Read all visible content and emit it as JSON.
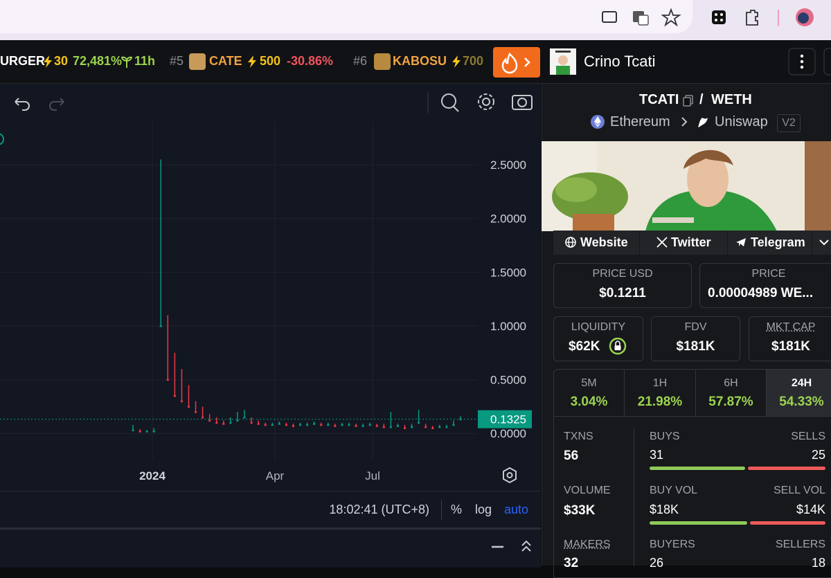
{
  "ticker": [
    {
      "name": "URGER",
      "boost": "30",
      "change": "72,481%",
      "age": "11h"
    },
    {
      "rank": "#5",
      "name": "CATE",
      "boost": "500",
      "change": "-30.86%"
    },
    {
      "rank": "#6",
      "name": "KABOSU",
      "boost": "700"
    }
  ],
  "header": {
    "title": "Crino Tcati"
  },
  "chart": {
    "type": "candlestick",
    "ylim": [
      -0.25,
      2.9
    ],
    "yticks": [
      {
        "value": 0,
        "label": "0.0000"
      },
      {
        "value": 0.5,
        "label": "0.5000"
      },
      {
        "value": 1,
        "label": "1.0000"
      },
      {
        "value": 1.5,
        "label": "1.5000"
      },
      {
        "value": 2,
        "label": "2.0000"
      },
      {
        "value": 2.5,
        "label": "2.5000"
      }
    ],
    "last_price": 0.1325,
    "close": [
      0.03,
      0.02,
      0.02,
      0.02,
      1.0,
      0.5,
      0.35,
      0.3,
      0.25,
      0.2,
      0.15,
      0.12,
      0.1,
      0.09,
      0.1,
      0.12,
      0.15,
      0.1,
      0.09,
      0.08,
      0.08,
      0.09,
      0.08,
      0.07,
      0.08,
      0.08,
      0.09,
      0.08,
      0.08,
      0.07,
      0.08,
      0.08,
      0.07,
      0.07,
      0.08,
      0.07,
      0.06,
      0.06,
      0.07,
      0.05,
      0.06,
      0.1,
      0.06,
      0.05,
      0.06,
      0.06,
      0.08,
      0.1325
    ],
    "high": [
      0.08,
      0.04,
      0.03,
      0.05,
      2.55,
      1.1,
      0.75,
      0.6,
      0.45,
      0.3,
      0.25,
      0.18,
      0.15,
      0.12,
      0.15,
      0.2,
      0.22,
      0.15,
      0.12,
      0.1,
      0.1,
      0.11,
      0.1,
      0.09,
      0.1,
      0.1,
      0.11,
      0.1,
      0.1,
      0.09,
      0.1,
      0.1,
      0.09,
      0.09,
      0.1,
      0.09,
      0.09,
      0.2,
      0.09,
      0.08,
      0.09,
      0.22,
      0.09,
      0.07,
      0.08,
      0.08,
      0.12,
      0.16
    ],
    "colors": {
      "up": "#089981",
      "down": "#f23645"
    },
    "xlabels": [
      "2024",
      "Apr",
      "Jul"
    ],
    "time": "18:02:41 (UTC+8)",
    "scale_buttons": [
      "%",
      "log",
      "auto"
    ]
  },
  "pair": {
    "base": "TCATI",
    "separator": "/",
    "quote": "WETH",
    "chain": "Ethereum",
    "dex": "Uniswap",
    "version": "V2"
  },
  "links": [
    "Website",
    "Twitter",
    "Telegram"
  ],
  "prices": [
    {
      "label": "PRICE USD",
      "value": "$0.1211"
    },
    {
      "label": "PRICE",
      "value": "0.00004989 WE..."
    }
  ],
  "stats": [
    {
      "label": "LIQUIDITY",
      "value": "$62K"
    },
    {
      "label": "FDV",
      "value": "$181K"
    },
    {
      "label": "MKT CAP",
      "value": "$181K"
    }
  ],
  "periods": [
    {
      "label": "5M",
      "change": "3.04%"
    },
    {
      "label": "1H",
      "change": "21.98%"
    },
    {
      "label": "6H",
      "change": "57.87%"
    },
    {
      "label": "24H",
      "change": "54.33%"
    }
  ],
  "activity": {
    "txns": {
      "label": "TXNS",
      "total": 56,
      "buys_label": "BUYS",
      "buys": 31,
      "sells_label": "SELLS",
      "sells": 25
    },
    "volume": {
      "label": "VOLUME",
      "total": "$33K",
      "buys_label": "BUY VOL",
      "buys": {
        "value": 18000,
        "label": "$18K"
      },
      "sells_label": "SELL VOL",
      "sells": {
        "value": 14000,
        "label": "$14K"
      }
    },
    "makers": {
      "label": "MAKERS",
      "total": 32,
      "buys_label": "BUYERS",
      "buys": 26,
      "sells_label": "SELLERS",
      "sells": 18
    }
  }
}
